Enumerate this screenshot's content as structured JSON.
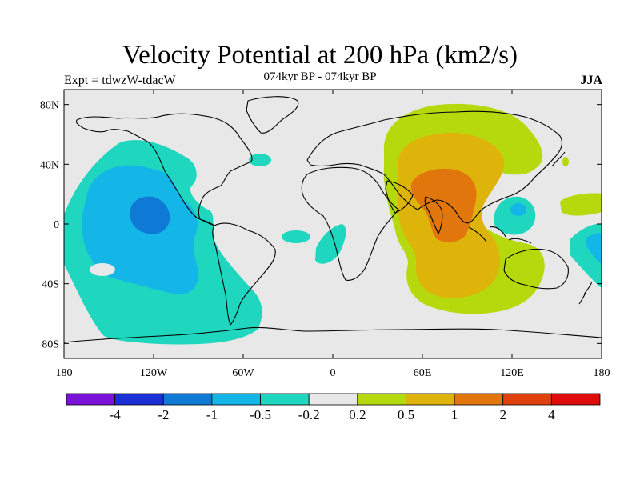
{
  "header": {
    "title": "Velocity Potential at 200 hPa (km2/s)",
    "left_label": "Expt = tdwzW-tdacW",
    "center_label": "074kyr BP - 074kyr BP",
    "right_label": "JJA"
  },
  "chart_data": {
    "type": "heatmap",
    "projection": "cylindrical-equidistant",
    "x_ticks": [
      {
        "value": -180,
        "label": "180"
      },
      {
        "value": -120,
        "label": "120W"
      },
      {
        "value": -60,
        "label": "60W"
      },
      {
        "value": 0,
        "label": "0"
      },
      {
        "value": 60,
        "label": "60E"
      },
      {
        "value": 120,
        "label": "120E"
      },
      {
        "value": 180,
        "label": "180"
      }
    ],
    "y_ticks": [
      {
        "value": 80,
        "label": "80N"
      },
      {
        "value": 40,
        "label": "40N"
      },
      {
        "value": 0,
        "label": "0"
      },
      {
        "value": -40,
        "label": "40S"
      },
      {
        "value": -80,
        "label": "80S"
      }
    ],
    "xlim": [
      -180,
      180
    ],
    "ylim": [
      -90,
      90
    ],
    "colorbar": {
      "levels": [
        "-4",
        "-2",
        "-1",
        "-0.5",
        "-0.2",
        "0.2",
        "0.5",
        "1",
        "2",
        "4"
      ],
      "colors": [
        "#7a12d8",
        "#1a2fd6",
        "#0f7ad6",
        "#13b6e6",
        "#1fd6be",
        "#e8e8e8",
        "#b5d90c",
        "#dfb40a",
        "#e0760c",
        "#e0400c",
        "#e00c0c"
      ]
    }
  }
}
